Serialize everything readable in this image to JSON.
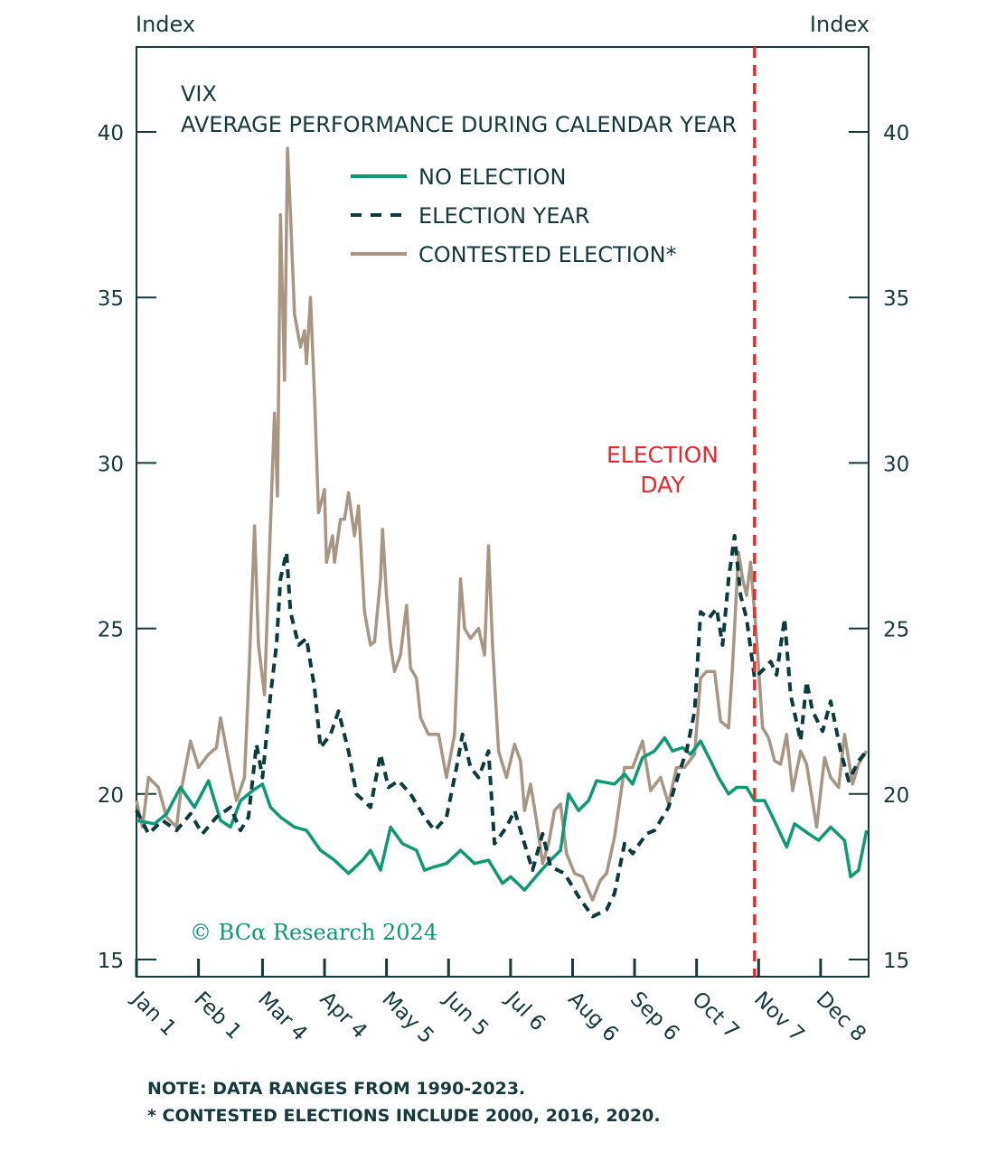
{
  "chart_data": {
    "type": "line",
    "title": "VIX",
    "subtitle": "AVERAGE PERFORMANCE DURING CALENDAR YEAR",
    "ylabel_left": "Index",
    "ylabel_right": "Index",
    "ylim": [
      15,
      40
    ],
    "yticks": [
      15,
      20,
      25,
      30,
      35,
      40
    ],
    "xlim": [
      0,
      366
    ],
    "xunit": "day of year",
    "xticks": [
      {
        "day": 0,
        "label": "Jan 1"
      },
      {
        "day": 31,
        "label": "Feb 1"
      },
      {
        "day": 63,
        "label": "Mar 4"
      },
      {
        "day": 94,
        "label": "Apr 4"
      },
      {
        "day": 125,
        "label": "May 5"
      },
      {
        "day": 156,
        "label": "Jun 5"
      },
      {
        "day": 187,
        "label": "Jul 6"
      },
      {
        "day": 218,
        "label": "Aug 6"
      },
      {
        "day": 249,
        "label": "Sep 6"
      },
      {
        "day": 280,
        "label": "Oct 7"
      },
      {
        "day": 311,
        "label": "Nov 7"
      },
      {
        "day": 342,
        "label": "Dec 8"
      }
    ],
    "legend_position": "top-center",
    "election_day": {
      "day": 309,
      "label_line1": "ELECTION",
      "label_line2": "DAY",
      "color": "#e8282b"
    },
    "series": [
      {
        "name": "NO ELECTION",
        "color": "#0a9a74",
        "style": "solid",
        "points": [
          [
            0,
            19.2
          ],
          [
            9,
            19.1
          ],
          [
            15,
            19.4
          ],
          [
            22,
            20.2
          ],
          [
            29,
            19.6
          ],
          [
            36,
            20.4
          ],
          [
            42,
            19.2
          ],
          [
            47,
            19.0
          ],
          [
            52,
            19.8
          ],
          [
            58,
            20.1
          ],
          [
            63,
            20.3
          ],
          [
            67,
            19.6
          ],
          [
            72,
            19.3
          ],
          [
            79,
            19.0
          ],
          [
            85,
            18.9
          ],
          [
            92,
            18.3
          ],
          [
            99,
            18.0
          ],
          [
            106,
            17.6
          ],
          [
            113,
            18.0
          ],
          [
            117,
            18.3
          ],
          [
            122,
            17.7
          ],
          [
            127,
            19.0
          ],
          [
            133,
            18.5
          ],
          [
            140,
            18.3
          ],
          [
            144,
            17.7
          ],
          [
            149,
            17.8
          ],
          [
            155,
            17.9
          ],
          [
            162,
            18.3
          ],
          [
            169,
            17.9
          ],
          [
            176,
            18.0
          ],
          [
            183,
            17.3
          ],
          [
            187,
            17.5
          ],
          [
            194,
            17.1
          ],
          [
            201,
            17.6
          ],
          [
            207,
            18.0
          ],
          [
            212,
            18.3
          ],
          [
            216,
            20.0
          ],
          [
            221,
            19.5
          ],
          [
            226,
            19.8
          ],
          [
            230,
            20.4
          ],
          [
            239,
            20.3
          ],
          [
            244,
            20.6
          ],
          [
            248,
            20.3
          ],
          [
            253,
            21.1
          ],
          [
            259,
            21.3
          ],
          [
            264,
            21.7
          ],
          [
            268,
            21.3
          ],
          [
            273,
            21.4
          ],
          [
            277,
            21.2
          ],
          [
            282,
            21.6
          ],
          [
            287,
            21.0
          ],
          [
            291,
            20.5
          ],
          [
            296,
            20.0
          ],
          [
            300,
            20.2
          ],
          [
            305,
            20.2
          ],
          [
            309,
            19.8
          ],
          [
            314,
            19.8
          ],
          [
            318,
            19.3
          ],
          [
            325,
            18.4
          ],
          [
            329,
            19.1
          ],
          [
            336,
            18.8
          ],
          [
            341,
            18.6
          ],
          [
            347,
            19.0
          ],
          [
            354,
            18.6
          ],
          [
            357,
            17.5
          ],
          [
            361,
            17.7
          ],
          [
            365,
            18.9
          ]
        ]
      },
      {
        "name": "ELECTION YEAR",
        "color": "#0d3a3f",
        "style": "dashed",
        "points": [
          [
            0,
            19.5
          ],
          [
            6,
            18.8
          ],
          [
            13,
            19.2
          ],
          [
            20,
            18.9
          ],
          [
            27,
            19.4
          ],
          [
            33,
            18.8
          ],
          [
            40,
            19.3
          ],
          [
            47,
            19.6
          ],
          [
            52,
            18.9
          ],
          [
            56,
            19.3
          ],
          [
            60,
            21.5
          ],
          [
            63,
            20.5
          ],
          [
            67,
            23.0
          ],
          [
            70,
            24.5
          ],
          [
            72,
            26.5
          ],
          [
            75,
            27.3
          ],
          [
            77,
            25.5
          ],
          [
            81,
            24.5
          ],
          [
            85,
            24.7
          ],
          [
            89,
            23.2
          ],
          [
            92,
            21.4
          ],
          [
            97,
            21.8
          ],
          [
            101,
            22.5
          ],
          [
            106,
            21.3
          ],
          [
            110,
            20.0
          ],
          [
            117,
            19.6
          ],
          [
            122,
            21.2
          ],
          [
            126,
            20.2
          ],
          [
            131,
            20.4
          ],
          [
            137,
            20.0
          ],
          [
            144,
            19.3
          ],
          [
            149,
            18.9
          ],
          [
            155,
            19.3
          ],
          [
            160,
            20.8
          ],
          [
            163,
            21.8
          ],
          [
            167,
            20.8
          ],
          [
            171,
            20.5
          ],
          [
            176,
            21.3
          ],
          [
            179,
            18.5
          ],
          [
            185,
            19.0
          ],
          [
            189,
            19.5
          ],
          [
            194,
            18.5
          ],
          [
            198,
            17.7
          ],
          [
            203,
            18.8
          ],
          [
            207,
            17.8
          ],
          [
            214,
            17.6
          ],
          [
            221,
            16.9
          ],
          [
            228,
            16.3
          ],
          [
            235,
            16.5
          ],
          [
            239,
            17.0
          ],
          [
            244,
            18.5
          ],
          [
            248,
            18.2
          ],
          [
            255,
            18.8
          ],
          [
            259,
            18.9
          ],
          [
            266,
            19.6
          ],
          [
            271,
            20.6
          ],
          [
            275,
            21.3
          ],
          [
            279,
            22.5
          ],
          [
            282,
            25.5
          ],
          [
            286,
            25.3
          ],
          [
            290,
            25.6
          ],
          [
            293,
            24.5
          ],
          [
            296,
            26.5
          ],
          [
            299,
            27.8
          ],
          [
            302,
            26.0
          ],
          [
            305,
            25.3
          ],
          [
            309,
            23.5
          ],
          [
            314,
            23.8
          ],
          [
            317,
            24.0
          ],
          [
            320,
            23.6
          ],
          [
            324,
            25.3
          ],
          [
            327,
            23.0
          ],
          [
            332,
            21.6
          ],
          [
            335,
            23.4
          ],
          [
            338,
            22.5
          ],
          [
            343,
            21.9
          ],
          [
            347,
            22.8
          ],
          [
            352,
            21.3
          ],
          [
            356,
            20.4
          ],
          [
            361,
            21.0
          ],
          [
            365,
            21.3
          ]
        ]
      },
      {
        "name": "CONTESTED ELECTION*",
        "color": "#a89684",
        "style": "solid",
        "points": [
          [
            0,
            19.8
          ],
          [
            3,
            19.0
          ],
          [
            6,
            20.5
          ],
          [
            11,
            20.2
          ],
          [
            15,
            19.3
          ],
          [
            20,
            19.0
          ],
          [
            22,
            20.0
          ],
          [
            27,
            21.6
          ],
          [
            31,
            20.8
          ],
          [
            36,
            21.2
          ],
          [
            40,
            21.4
          ],
          [
            42,
            22.3
          ],
          [
            47,
            20.7
          ],
          [
            50,
            19.8
          ],
          [
            54,
            20.5
          ],
          [
            56.5,
            24.0
          ],
          [
            59,
            28.1
          ],
          [
            61,
            24.5
          ],
          [
            64,
            23.0
          ],
          [
            66,
            26.5
          ],
          [
            69,
            31.5
          ],
          [
            70.5,
            29.0
          ],
          [
            72,
            37.5
          ],
          [
            74,
            32.5
          ],
          [
            75.5,
            39.5
          ],
          [
            77,
            37.5
          ],
          [
            79,
            34.5
          ],
          [
            82,
            33.5
          ],
          [
            84,
            34.0
          ],
          [
            85,
            33.0
          ],
          [
            87,
            35.0
          ],
          [
            89,
            32.0
          ],
          [
            91,
            28.5
          ],
          [
            94,
            29.2
          ],
          [
            95,
            27.0
          ],
          [
            98,
            27.8
          ],
          [
            99,
            27.0
          ],
          [
            102,
            28.3
          ],
          [
            104,
            28.3
          ],
          [
            106,
            29.1
          ],
          [
            109,
            27.8
          ],
          [
            111,
            28.7
          ],
          [
            114,
            25.5
          ],
          [
            117,
            24.5
          ],
          [
            119,
            24.6
          ],
          [
            122,
            26.5
          ],
          [
            123,
            28.0
          ],
          [
            125,
            26.0
          ],
          [
            127,
            24.5
          ],
          [
            129,
            23.7
          ],
          [
            132,
            24.2
          ],
          [
            135,
            25.7
          ],
          [
            137,
            23.8
          ],
          [
            140,
            23.5
          ],
          [
            142,
            22.3
          ],
          [
            146,
            21.8
          ],
          [
            151,
            21.8
          ],
          [
            155,
            20.5
          ],
          [
            159,
            21.8
          ],
          [
            162,
            26.5
          ],
          [
            164,
            25.0
          ],
          [
            167,
            24.7
          ],
          [
            171,
            25.0
          ],
          [
            174,
            24.2
          ],
          [
            176,
            27.5
          ],
          [
            178,
            24.5
          ],
          [
            181,
            21.3
          ],
          [
            185,
            20.5
          ],
          [
            189,
            21.5
          ],
          [
            192,
            21.0
          ],
          [
            194,
            19.5
          ],
          [
            197,
            20.3
          ],
          [
            200,
            19.2
          ],
          [
            203,
            17.9
          ],
          [
            206,
            18.5
          ],
          [
            209,
            19.5
          ],
          [
            212,
            19.7
          ],
          [
            215,
            18.2
          ],
          [
            219,
            17.6
          ],
          [
            223,
            17.5
          ],
          [
            228,
            16.8
          ],
          [
            232,
            17.4
          ],
          [
            235,
            17.6
          ],
          [
            239,
            18.7
          ],
          [
            244,
            20.8
          ],
          [
            248,
            20.8
          ],
          [
            253,
            21.6
          ],
          [
            257,
            20.1
          ],
          [
            262,
            20.5
          ],
          [
            266,
            19.7
          ],
          [
            270,
            20.8
          ],
          [
            274,
            20.8
          ],
          [
            279,
            21.2
          ],
          [
            282,
            23.5
          ],
          [
            285,
            23.7
          ],
          [
            289,
            23.7
          ],
          [
            292,
            22.2
          ],
          [
            296,
            22.0
          ],
          [
            298,
            23.9
          ],
          [
            301,
            27.3
          ],
          [
            303,
            26.5
          ],
          [
            305,
            26.0
          ],
          [
            307,
            27.0
          ],
          [
            310,
            24.7
          ],
          [
            313,
            22.0
          ],
          [
            316,
            21.7
          ],
          [
            319,
            21.0
          ],
          [
            322,
            20.9
          ],
          [
            325,
            21.8
          ],
          [
            328,
            20.1
          ],
          [
            332,
            21.3
          ],
          [
            335,
            20.9
          ],
          [
            340,
            19.0
          ],
          [
            344,
            21.1
          ],
          [
            347,
            20.5
          ],
          [
            351,
            20.2
          ],
          [
            354,
            21.8
          ],
          [
            358,
            20.3
          ],
          [
            361,
            20.9
          ],
          [
            365,
            21.3
          ]
        ]
      }
    ],
    "watermark": "© BCα Research 2024",
    "notes": [
      "NOTE: DATA RANGES FROM 1990-2023.",
      "* CONTESTED ELECTIONS INCLUDE 2000, 2016, 2020."
    ]
  }
}
